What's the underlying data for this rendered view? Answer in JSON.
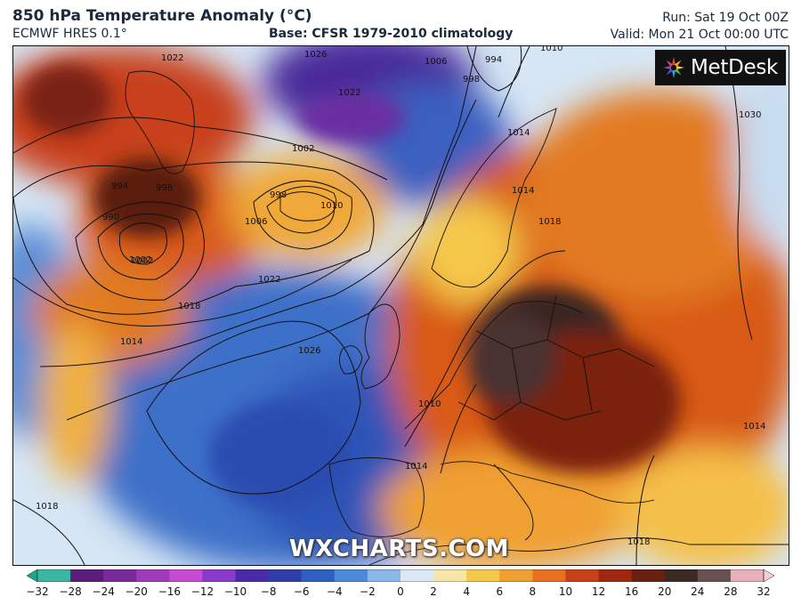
{
  "header": {
    "title": "850 hPa Temperature Anomaly (°C)",
    "model": "ECMWF HRES 0.1°",
    "base": "Base: CFSR 1979-2010 climatology",
    "run": "Run: Sat 19 Oct 00Z",
    "valid": "Valid: Mon 21 Oct 00:00 UTC"
  },
  "branding": {
    "logo_text": "MetDesk",
    "watermark": "WXCHARTS.COM"
  },
  "map": {
    "isobar_labels": [
      "1022",
      "1022",
      "1026",
      "1006",
      "994",
      "998",
      "1002",
      "1010",
      "1014",
      "1002",
      "998",
      "1010",
      "994",
      "998",
      "990",
      "1006",
      "1002",
      "1018",
      "1022",
      "1014",
      "1026",
      "1010",
      "1014",
      "1030",
      "1018",
      "1018",
      "1014",
      "1018",
      "1014"
    ]
  },
  "colorbar": {
    "ticks": [
      "−32",
      "−28",
      "−24",
      "−20",
      "−16",
      "−12",
      "−10",
      "−8",
      "−6",
      "−4",
      "−2",
      "0",
      "2",
      "4",
      "6",
      "8",
      "10",
      "12",
      "16",
      "20",
      "24",
      "28",
      "32"
    ],
    "colors": [
      "#1aa88a",
      "#3ab7a0",
      "#5a1d7a",
      "#7a2a9a",
      "#a03ab8",
      "#c84ad0",
      "#8a3acb",
      "#4b2aa8",
      "#2f3ea8",
      "#2f5fc0",
      "#4a8ad8",
      "#8ab8e8",
      "#dce9f5",
      "#f7e6a8",
      "#f5c84a",
      "#f0a030",
      "#e87020",
      "#c84018",
      "#a02810",
      "#6a2010",
      "#3a2a26",
      "#6a5050",
      "#e8b0b8",
      "#f4d0d8"
    ]
  }
}
